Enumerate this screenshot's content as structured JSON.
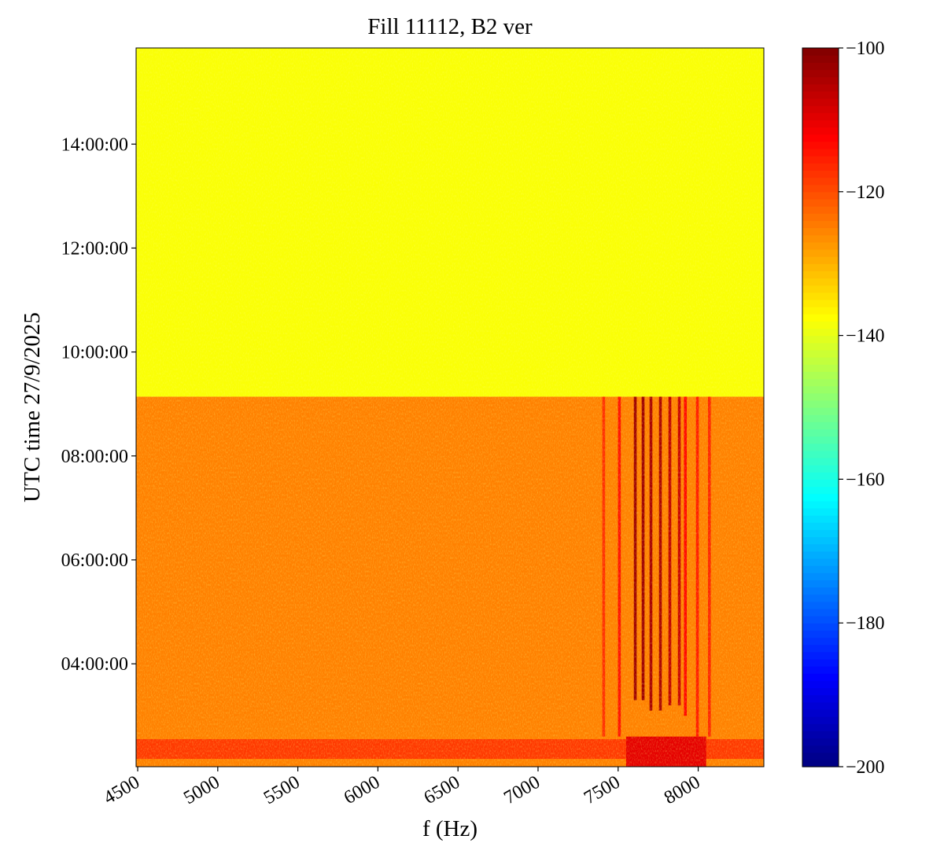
{
  "chart_data": {
    "type": "heatmap",
    "title": "Fill 11112, B2 ver",
    "x_label": "f (Hz)",
    "y_label": "UTC time 27/9/2025",
    "colormap": "jet",
    "xlim": [
      4490,
      8410
    ],
    "xticks": [
      4500,
      5000,
      5500,
      6000,
      6500,
      7000,
      7500,
      8000
    ],
    "ylim": [
      2.02,
      15.85
    ],
    "yticks": [
      {
        "value": 4,
        "label": "04:00:00"
      },
      {
        "value": 6,
        "label": "06:00:00"
      },
      {
        "value": 8,
        "label": "08:00:00"
      },
      {
        "value": 10,
        "label": "10:00:00"
      },
      {
        "value": 12,
        "label": "12:00:00"
      },
      {
        "value": 14,
        "label": "14:00:00"
      }
    ],
    "clim": [
      -200,
      -100
    ],
    "cticks": [
      {
        "value": -200,
        "label": "−200"
      },
      {
        "value": -180,
        "label": "−180"
      },
      {
        "value": -160,
        "label": "−160"
      },
      {
        "value": -140,
        "label": "−140"
      },
      {
        "value": -120,
        "label": "−120"
      },
      {
        "value": -100,
        "label": "−100"
      }
    ],
    "regions": [
      {
        "f": [
          4490,
          8410
        ],
        "t": [
          9.14,
          15.85
        ],
        "value": -138
      },
      {
        "f": [
          4490,
          8410
        ],
        "t": [
          2.02,
          9.14
        ],
        "value": -125
      },
      {
        "f": [
          4490,
          8410
        ],
        "t": [
          2.17,
          2.55
        ],
        "value": -118
      },
      {
        "f": [
          7550,
          8050
        ],
        "t": [
          2.02,
          2.6
        ],
        "value": -110
      }
    ],
    "lines": [
      {
        "f": 7410,
        "t": [
          2.6,
          9.14
        ],
        "value": -117
      },
      {
        "f": 7508,
        "t": [
          2.6,
          9.14
        ],
        "value": -114
      },
      {
        "f": 7607,
        "t": [
          3.3,
          9.14
        ],
        "value": -103
      },
      {
        "f": 7656,
        "t": [
          3.3,
          9.14
        ],
        "value": -103
      },
      {
        "f": 7705,
        "t": [
          3.1,
          9.14
        ],
        "value": -104
      },
      {
        "f": 7764,
        "t": [
          3.1,
          9.14
        ],
        "value": -104
      },
      {
        "f": 7823,
        "t": [
          3.2,
          9.14
        ],
        "value": -106
      },
      {
        "f": 7882,
        "t": [
          3.2,
          9.14
        ],
        "value": -107
      },
      {
        "f": 7920,
        "t": [
          3.0,
          9.14
        ],
        "value": -113
      },
      {
        "f": 7995,
        "t": [
          2.6,
          9.14
        ],
        "value": -115
      },
      {
        "f": 8070,
        "t": [
          2.6,
          9.14
        ],
        "value": -116
      }
    ]
  }
}
